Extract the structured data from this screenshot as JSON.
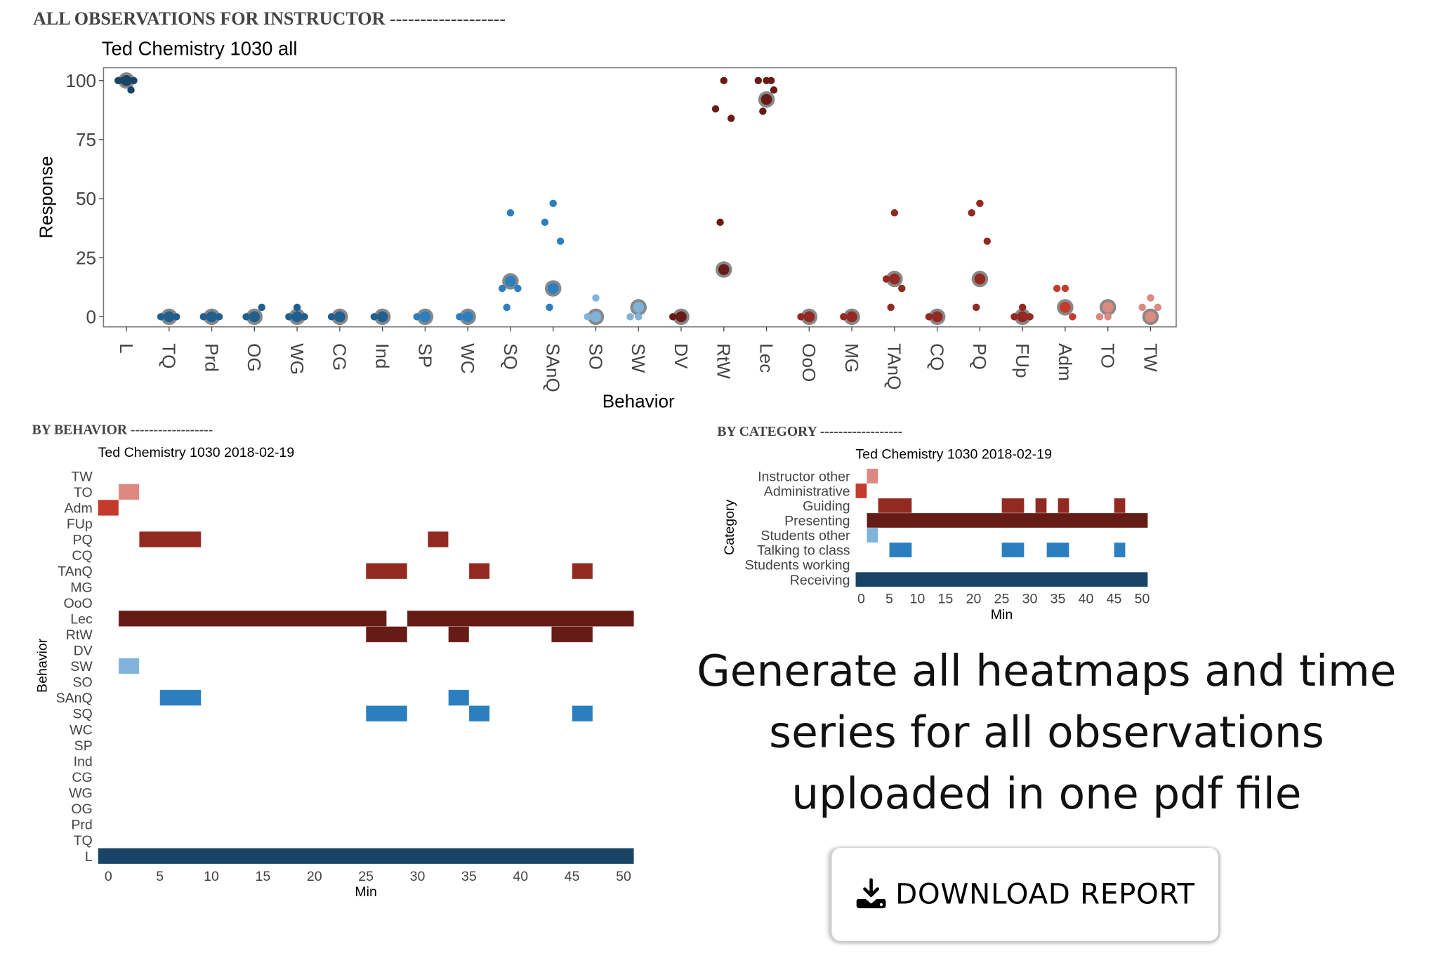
{
  "sections": {
    "all_observations": "ALL OBSERVATIONS FOR INSTRUCTOR -------------------",
    "by_behavior": "BY BEHAVIOR ------------------",
    "by_category": "BY CATEGORY ------------------"
  },
  "promo_text": [
    "Generate all heatmaps and time",
    "series for all observations",
    "uploaded in one pdf file"
  ],
  "download_button": {
    "label": "DOWNLOAD REPORT",
    "icon": "download-icon"
  },
  "chart_data": [
    {
      "type": "scatter",
      "title": "Ted Chemistry 1030 all",
      "xlabel": "Behavior",
      "ylabel": "Response",
      "ylim": [
        0,
        100
      ],
      "yticks": [
        0,
        25,
        50,
        75,
        100
      ],
      "grid": false,
      "categories": [
        {
          "name": "L",
          "mean": 100,
          "points": [
            100,
            100,
            100,
            100,
            96
          ],
          "color": "#1a4466"
        },
        {
          "name": "TQ",
          "mean": 0,
          "points": [
            0,
            0,
            0
          ],
          "color": "#215f8f"
        },
        {
          "name": "Prd",
          "mean": 0,
          "points": [
            0,
            0,
            0
          ],
          "color": "#215f8f"
        },
        {
          "name": "OG",
          "mean": 0,
          "points": [
            0,
            0,
            4
          ],
          "color": "#215f8f"
        },
        {
          "name": "WG",
          "mean": 0,
          "points": [
            4,
            0,
            0
          ],
          "color": "#215f8f"
        },
        {
          "name": "CG",
          "mean": 0,
          "points": [
            0,
            0
          ],
          "color": "#215f8f"
        },
        {
          "name": "Ind",
          "mean": 0,
          "points": [
            0,
            0
          ],
          "color": "#215f8f"
        },
        {
          "name": "SP",
          "mean": 0,
          "points": [
            0,
            0
          ],
          "color": "#2b7fbf"
        },
        {
          "name": "WC",
          "mean": 0,
          "points": [
            0,
            0
          ],
          "color": "#2b7fbf"
        },
        {
          "name": "SQ",
          "mean": 15,
          "points": [
            44,
            12,
            12,
            4
          ],
          "color": "#2b7fbf"
        },
        {
          "name": "SAnQ",
          "mean": 12,
          "points": [
            48,
            40,
            32,
            4
          ],
          "color": "#2b7fbf"
        },
        {
          "name": "SO",
          "mean": 0,
          "points": [
            8,
            0
          ],
          "color": "#7fb3d9"
        },
        {
          "name": "SW",
          "mean": 4,
          "points": [
            0,
            0
          ],
          "color": "#7fb3d9"
        },
        {
          "name": "DV",
          "mean": 0,
          "points": [
            0,
            0
          ],
          "color": "#661c16"
        },
        {
          "name": "RtW",
          "mean": 20,
          "points": [
            100,
            88,
            84,
            40
          ],
          "color": "#661c16"
        },
        {
          "name": "Lec",
          "mean": 92,
          "points": [
            100,
            100,
            96,
            87,
            100
          ],
          "color": "#661c16"
        },
        {
          "name": "OoO",
          "mean": 0,
          "points": [
            0,
            0
          ],
          "color": "#922a22"
        },
        {
          "name": "MG",
          "mean": 0,
          "points": [
            0,
            0
          ],
          "color": "#922a22"
        },
        {
          "name": "TAnQ",
          "mean": 16,
          "points": [
            44,
            16,
            12,
            4
          ],
          "color": "#922a22"
        },
        {
          "name": "CQ",
          "mean": 0,
          "points": [
            0,
            0
          ],
          "color": "#922a22"
        },
        {
          "name": "PQ",
          "mean": 16,
          "points": [
            48,
            44,
            32,
            4
          ],
          "color": "#922a22"
        },
        {
          "name": "FUp",
          "mean": 0,
          "points": [
            4,
            0,
            0
          ],
          "color": "#922a22"
        },
        {
          "name": "Adm",
          "mean": 4,
          "points": [
            12,
            12,
            0
          ],
          "color": "#c43b2c"
        },
        {
          "name": "TO",
          "mean": 4,
          "points": [
            0,
            0
          ],
          "color": "#dd8880"
        },
        {
          "name": "TW",
          "mean": 0,
          "points": [
            8,
            4,
            4
          ],
          "color": "#dd8880"
        }
      ]
    },
    {
      "type": "heatmap",
      "title": "Ted Chemistry 1030 2018-02-19",
      "xlabel": "Min",
      "ylabel": "Behavior",
      "xlim": [
        -1,
        51
      ],
      "xticks": [
        0,
        5,
        10,
        15,
        20,
        25,
        30,
        35,
        40,
        45,
        50
      ],
      "rows": [
        {
          "name": "TW",
          "color": "#dd8880",
          "segments": []
        },
        {
          "name": "TO",
          "color": "#dd8880",
          "segments": [
            [
              1,
              3
            ]
          ]
        },
        {
          "name": "Adm",
          "color": "#c43b2c",
          "segments": [
            [
              -1,
              1
            ]
          ]
        },
        {
          "name": "FUp",
          "color": "#922a22",
          "segments": []
        },
        {
          "name": "PQ",
          "color": "#922a22",
          "segments": [
            [
              3,
              9
            ],
            [
              31,
              33
            ]
          ]
        },
        {
          "name": "CQ",
          "color": "#922a22",
          "segments": []
        },
        {
          "name": "TAnQ",
          "color": "#922a22",
          "segments": [
            [
              25,
              29
            ],
            [
              35,
              37
            ],
            [
              45,
              47
            ]
          ]
        },
        {
          "name": "MG",
          "color": "#922a22",
          "segments": []
        },
        {
          "name": "OoO",
          "color": "#922a22",
          "segments": []
        },
        {
          "name": "Lec",
          "color": "#661c16",
          "segments": [
            [
              1,
              27
            ],
            [
              29,
              51
            ]
          ]
        },
        {
          "name": "RtW",
          "color": "#661c16",
          "segments": [
            [
              25,
              29
            ],
            [
              33,
              35
            ],
            [
              43,
              47
            ]
          ]
        },
        {
          "name": "DV",
          "color": "#661c16",
          "segments": []
        },
        {
          "name": "SW",
          "color": "#7fb3d9",
          "segments": [
            [
              1,
              3
            ]
          ]
        },
        {
          "name": "SO",
          "color": "#7fb3d9",
          "segments": []
        },
        {
          "name": "SAnQ",
          "color": "#2b7fbf",
          "segments": [
            [
              5,
              9
            ],
            [
              33,
              35
            ]
          ]
        },
        {
          "name": "SQ",
          "color": "#2b7fbf",
          "segments": [
            [
              25,
              29
            ],
            [
              35,
              37
            ],
            [
              45,
              47
            ]
          ]
        },
        {
          "name": "WC",
          "color": "#2b7fbf",
          "segments": []
        },
        {
          "name": "SP",
          "color": "#2b7fbf",
          "segments": []
        },
        {
          "name": "Ind",
          "color": "#215f8f",
          "segments": []
        },
        {
          "name": "CG",
          "color": "#215f8f",
          "segments": []
        },
        {
          "name": "WG",
          "color": "#215f8f",
          "segments": []
        },
        {
          "name": "OG",
          "color": "#215f8f",
          "segments": []
        },
        {
          "name": "Prd",
          "color": "#215f8f",
          "segments": []
        },
        {
          "name": "TQ",
          "color": "#215f8f",
          "segments": []
        },
        {
          "name": "L",
          "color": "#1a4466",
          "segments": [
            [
              -1,
              51
            ]
          ]
        }
      ]
    },
    {
      "type": "heatmap",
      "title": "Ted Chemistry 1030 2018-02-19",
      "xlabel": "Min",
      "ylabel": "Category",
      "xlim": [
        -1,
        51
      ],
      "xticks": [
        0,
        5,
        10,
        15,
        20,
        25,
        30,
        35,
        40,
        45,
        50
      ],
      "rows": [
        {
          "name": "Instructor other",
          "color": "#dd8880",
          "segments": [
            [
              1,
              3
            ]
          ]
        },
        {
          "name": "Administrative",
          "color": "#c43b2c",
          "segments": [
            [
              -1,
              1
            ]
          ]
        },
        {
          "name": "Guiding",
          "color": "#922a22",
          "segments": [
            [
              3,
              9
            ],
            [
              25,
              29
            ],
            [
              31,
              33
            ],
            [
              35,
              37
            ],
            [
              45,
              47
            ]
          ]
        },
        {
          "name": "Presenting",
          "color": "#661c16",
          "segments": [
            [
              1,
              51
            ]
          ]
        },
        {
          "name": "Students other",
          "color": "#7fb3d9",
          "segments": [
            [
              1,
              3
            ]
          ]
        },
        {
          "name": "Talking to class",
          "color": "#2b7fbf",
          "segments": [
            [
              5,
              9
            ],
            [
              25,
              29
            ],
            [
              33,
              37
            ],
            [
              45,
              47
            ]
          ]
        },
        {
          "name": "Students working",
          "color": "#215f8f",
          "segments": []
        },
        {
          "name": "Receiving",
          "color": "#1a4466",
          "segments": [
            [
              -1,
              51
            ]
          ]
        }
      ]
    }
  ]
}
